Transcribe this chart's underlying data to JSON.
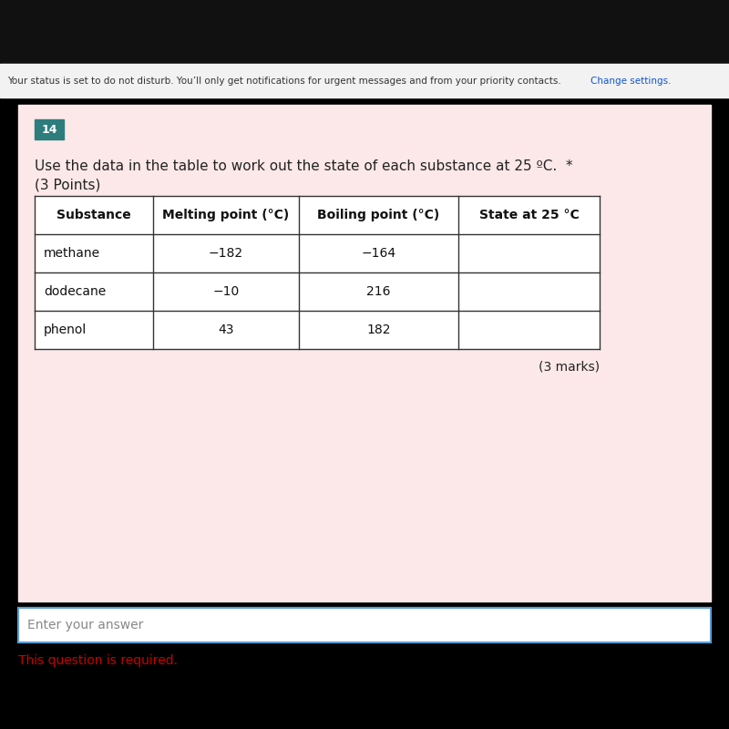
{
  "page_bg": "#000000",
  "top_bar_bg": "#f0f0f0",
  "top_bar_text": "Your status is set to do not disturb. You’ll only get notifications for urgent messages and from your priority contacts.",
  "top_bar_link": "Change settings.",
  "card_bg": "#fce8e8",
  "question_number": "14",
  "question_number_bg": "#2e7d7d",
  "question_number_color": "#ffffff",
  "question_text": "Use the data in the table to work out the state of each substance at 25 ºC.  *",
  "question_subtext": "(3 Points)",
  "table_header": [
    "Substance",
    "Melting point (°C)",
    "Boiling point (°C)",
    "State at 25 °C"
  ],
  "table_rows": [
    [
      "methane",
      "−182",
      "−164",
      ""
    ],
    [
      "dodecane",
      "−10",
      "216",
      ""
    ],
    [
      "phenol",
      "43",
      "182",
      ""
    ]
  ],
  "marks_text": "(3 marks)",
  "input_label": "Enter your answer",
  "required_text": "This question is required.",
  "required_color": "#cc0000",
  "input_bg": "#ffffff",
  "input_border": "#5b9bd5",
  "white_bg": "#ffffff",
  "table_header_bg": "#ffffff",
  "table_border": "#333333"
}
